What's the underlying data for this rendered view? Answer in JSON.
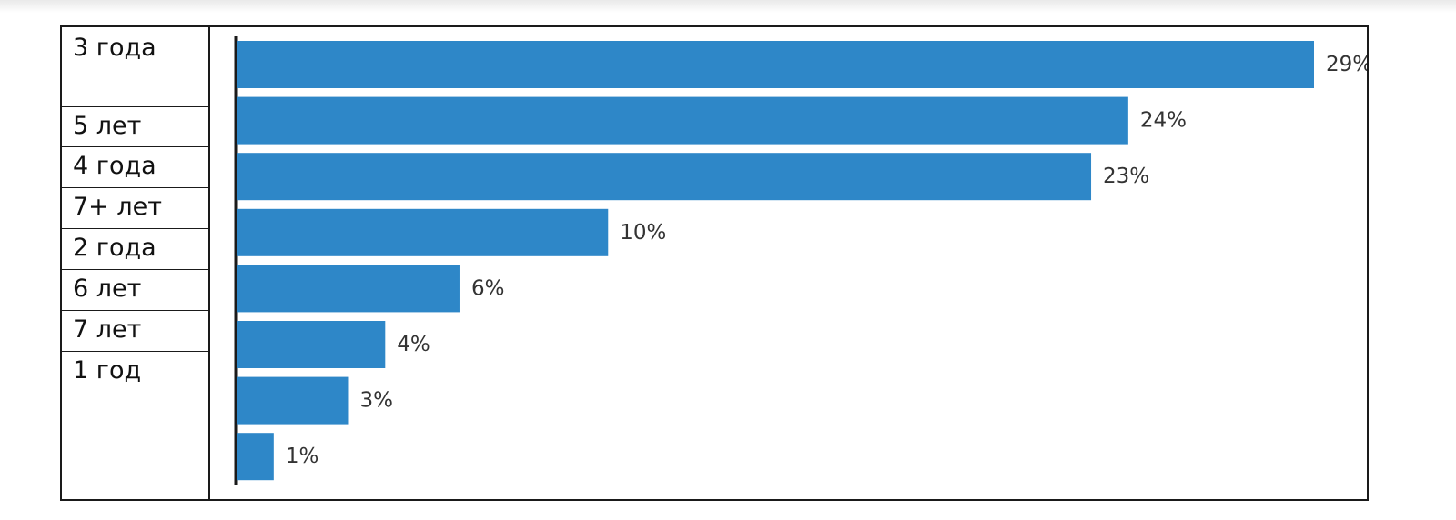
{
  "table": {
    "rows": [
      "3 года",
      "5 лет",
      "4 года",
      "7+ лет",
      "2 года",
      "6 лет",
      "7 лет",
      "1 год"
    ]
  },
  "chart_data": {
    "type": "bar",
    "orientation": "horizontal",
    "categories": [
      "",
      "",
      "",
      "",
      "",
      "",
      "",
      ""
    ],
    "values": [
      29,
      24,
      23,
      10,
      6,
      4,
      3,
      1
    ],
    "value_labels": [
      "29%",
      "24%",
      "23%",
      "10%",
      "6%",
      "4%",
      "3%",
      "1%"
    ],
    "unit": "%",
    "xlim": [
      0,
      29
    ],
    "grid": false,
    "legend": "none",
    "bar_color": "#2e87c8"
  }
}
